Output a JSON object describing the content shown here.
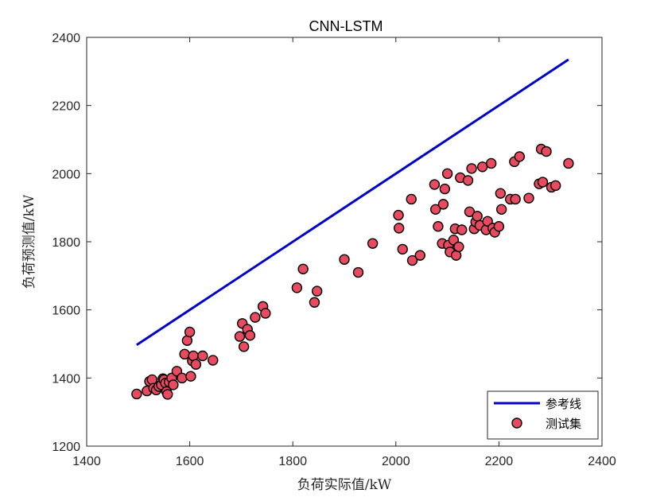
{
  "chart_data": {
    "type": "scatter",
    "title": "CNN-LSTM",
    "xlabel": "负荷实际值/kW",
    "ylabel": "负荷预测值/kW",
    "xlim": [
      1400,
      2400
    ],
    "ylim": [
      1200,
      2400
    ],
    "x_ticks": [
      "1400",
      "1600",
      "1800",
      "2000",
      "2200",
      "2400"
    ],
    "y_ticks": [
      "1200",
      "1400",
      "1600",
      "1800",
      "2000",
      "2200",
      "2400"
    ],
    "grid": false,
    "legend_position": "bottom-right",
    "series": [
      {
        "name": "参考线",
        "kind": "line",
        "color": "#0000cc",
        "points": [
          [
            1497,
            1497
          ],
          [
            2335,
            2335
          ]
        ]
      },
      {
        "name": "测试集",
        "kind": "scatter",
        "color": "#e84a5f",
        "edge_color": "#000000",
        "points": [
          [
            1497,
            1353
          ],
          [
            1517,
            1362
          ],
          [
            1522,
            1390
          ],
          [
            1527,
            1395
          ],
          [
            1530,
            1370
          ],
          [
            1535,
            1365
          ],
          [
            1540,
            1375
          ],
          [
            1545,
            1380
          ],
          [
            1548,
            1398
          ],
          [
            1550,
            1395
          ],
          [
            1553,
            1385
          ],
          [
            1555,
            1360
          ],
          [
            1557,
            1352
          ],
          [
            1560,
            1388
          ],
          [
            1565,
            1400
          ],
          [
            1568,
            1380
          ],
          [
            1575,
            1420
          ],
          [
            1585,
            1400
          ],
          [
            1590,
            1470
          ],
          [
            1595,
            1510
          ],
          [
            1600,
            1535
          ],
          [
            1602,
            1405
          ],
          [
            1605,
            1450
          ],
          [
            1607,
            1465
          ],
          [
            1612,
            1440
          ],
          [
            1625,
            1465
          ],
          [
            1645,
            1452
          ],
          [
            1697,
            1522
          ],
          [
            1702,
            1560
          ],
          [
            1705,
            1492
          ],
          [
            1712,
            1543
          ],
          [
            1717,
            1525
          ],
          [
            1727,
            1578
          ],
          [
            1742,
            1610
          ],
          [
            1747,
            1590
          ],
          [
            1808,
            1665
          ],
          [
            1820,
            1720
          ],
          [
            1842,
            1622
          ],
          [
            1847,
            1655
          ],
          [
            1900,
            1748
          ],
          [
            1927,
            1710
          ],
          [
            1955,
            1795
          ],
          [
            2005,
            1878
          ],
          [
            2006,
            1840
          ],
          [
            2013,
            1778
          ],
          [
            2030,
            1925
          ],
          [
            2032,
            1745
          ],
          [
            2047,
            1760
          ],
          [
            2075,
            1968
          ],
          [
            2077,
            1895
          ],
          [
            2082,
            1845
          ],
          [
            2090,
            1795
          ],
          [
            2092,
            1910
          ],
          [
            2095,
            1955
          ],
          [
            2100,
            2000
          ],
          [
            2102,
            1790
          ],
          [
            2105,
            1770
          ],
          [
            2112,
            1805
          ],
          [
            2115,
            1838
          ],
          [
            2117,
            1760
          ],
          [
            2122,
            1785
          ],
          [
            2125,
            1988
          ],
          [
            2128,
            1835
          ],
          [
            2140,
            1980
          ],
          [
            2143,
            1888
          ],
          [
            2147,
            2015
          ],
          [
            2152,
            1838
          ],
          [
            2155,
            1858
          ],
          [
            2158,
            1875
          ],
          [
            2163,
            1848
          ],
          [
            2168,
            2020
          ],
          [
            2175,
            1835
          ],
          [
            2178,
            1860
          ],
          [
            2185,
            2030
          ],
          [
            2188,
            1840
          ],
          [
            2192,
            1828
          ],
          [
            2200,
            1845
          ],
          [
            2203,
            1942
          ],
          [
            2205,
            1895
          ],
          [
            2222,
            1925
          ],
          [
            2230,
            2035
          ],
          [
            2232,
            1925
          ],
          [
            2240,
            2050
          ],
          [
            2258,
            1928
          ],
          [
            2278,
            1970
          ],
          [
            2282,
            2072
          ],
          [
            2285,
            1975
          ],
          [
            2292,
            2065
          ],
          [
            2302,
            1960
          ],
          [
            2310,
            1965
          ],
          [
            2335,
            2030
          ]
        ]
      }
    ]
  }
}
